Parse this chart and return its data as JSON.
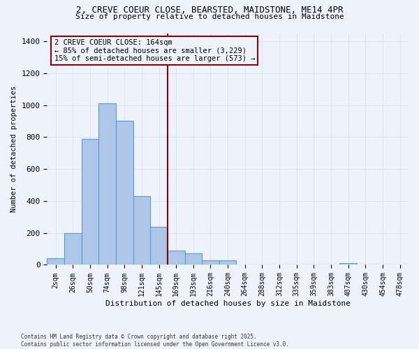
{
  "title_line1": "2, CREVE COEUR CLOSE, BEARSTED, MAIDSTONE, ME14 4PR",
  "title_line2": "Size of property relative to detached houses in Maidstone",
  "xlabel": "Distribution of detached houses by size in Maidstone",
  "ylabel": "Number of detached properties",
  "footnote": "Contains HM Land Registry data © Crown copyright and database right 2025.\nContains public sector information licensed under the Open Government Licence v3.0.",
  "bin_labels": [
    "2sqm",
    "26sqm",
    "50sqm",
    "74sqm",
    "98sqm",
    "121sqm",
    "145sqm",
    "169sqm",
    "193sqm",
    "216sqm",
    "240sqm",
    "264sqm",
    "288sqm",
    "312sqm",
    "335sqm",
    "359sqm",
    "383sqm",
    "407sqm",
    "430sqm",
    "454sqm",
    "478sqm"
  ],
  "bar_values": [
    40,
    200,
    790,
    1010,
    900,
    430,
    240,
    90,
    70,
    30,
    30,
    0,
    0,
    0,
    0,
    0,
    0,
    10,
    0,
    0,
    0
  ],
  "bar_color": "#aec6e8",
  "bar_edge_color": "#5b9bd5",
  "grid_color": "#dce6f1",
  "background_color": "#eef3fb",
  "vline_bin_index": 7,
  "vline_color": "#8b0000",
  "annotation_text": "2 CREVE COEUR CLOSE: 164sqm\n← 85% of detached houses are smaller (3,229)\n15% of semi-detached houses are larger (573) →",
  "annotation_box_color": "#8b0000",
  "ylim": [
    0,
    1450
  ],
  "yticks": [
    0,
    200,
    400,
    600,
    800,
    1000,
    1200,
    1400
  ]
}
